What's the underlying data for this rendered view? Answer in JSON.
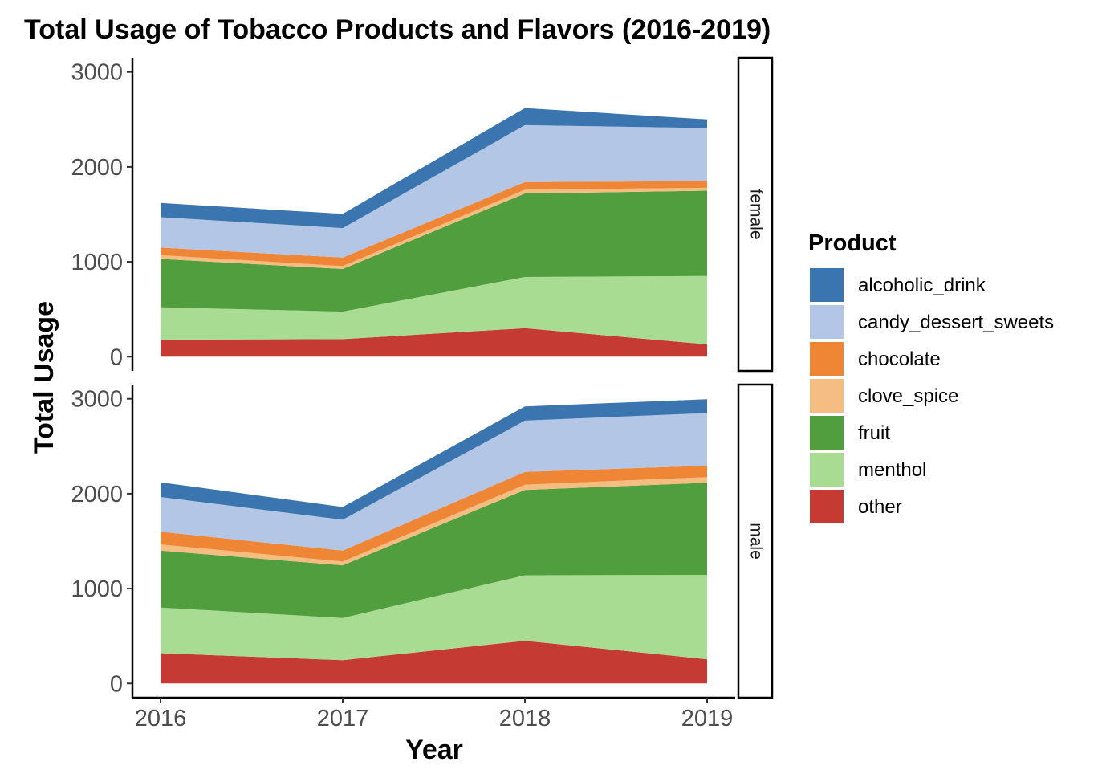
{
  "chart_data": {
    "type": "area",
    "stacked": true,
    "title": "Total Usage of Tobacco Products and Flavors (2016-2019)",
    "xlabel": "Year",
    "ylabel": "Total Usage",
    "x": [
      2016,
      2017,
      2018,
      2019
    ],
    "ylim": [
      -150,
      3150
    ],
    "yticks": [
      0,
      1000,
      2000,
      3000
    ],
    "legend": {
      "title": "Product",
      "position": "right"
    },
    "stack_order_bottom_to_top": [
      "other",
      "menthol",
      "fruit",
      "clove_spice",
      "chocolate",
      "candy_dessert_sweets",
      "alcoholic_drink"
    ],
    "series": [
      {
        "name": "alcoholic_drink",
        "color": "#3b75af"
      },
      {
        "name": "candy_dessert_sweets",
        "color": "#b3c6e5"
      },
      {
        "name": "chocolate",
        "color": "#ef8636"
      },
      {
        "name": "clove_spice",
        "color": "#f5bd82"
      },
      {
        "name": "fruit",
        "color": "#519e3e"
      },
      {
        "name": "menthol",
        "color": "#a9dc93"
      },
      {
        "name": "other",
        "color": "#c53a32"
      }
    ],
    "facets": [
      {
        "label": "female",
        "values": {
          "other": [
            180,
            185,
            300,
            130
          ],
          "menthol": [
            340,
            290,
            540,
            720
          ],
          "fruit": [
            510,
            450,
            880,
            900
          ],
          "clove_spice": [
            40,
            30,
            40,
            30
          ],
          "chocolate": [
            80,
            90,
            80,
            70
          ],
          "candy_dessert_sweets": [
            320,
            310,
            600,
            560
          ],
          "alcoholic_drink": [
            150,
            150,
            180,
            90
          ]
        }
      },
      {
        "label": "male",
        "values": {
          "other": [
            320,
            245,
            450,
            255
          ],
          "menthol": [
            480,
            445,
            690,
            890
          ],
          "fruit": [
            600,
            555,
            900,
            970
          ],
          "clove_spice": [
            65,
            40,
            55,
            60
          ],
          "chocolate": [
            135,
            115,
            135,
            120
          ],
          "candy_dessert_sweets": [
            365,
            325,
            540,
            555
          ],
          "alcoholic_drink": [
            155,
            135,
            150,
            145
          ]
        }
      }
    ]
  }
}
